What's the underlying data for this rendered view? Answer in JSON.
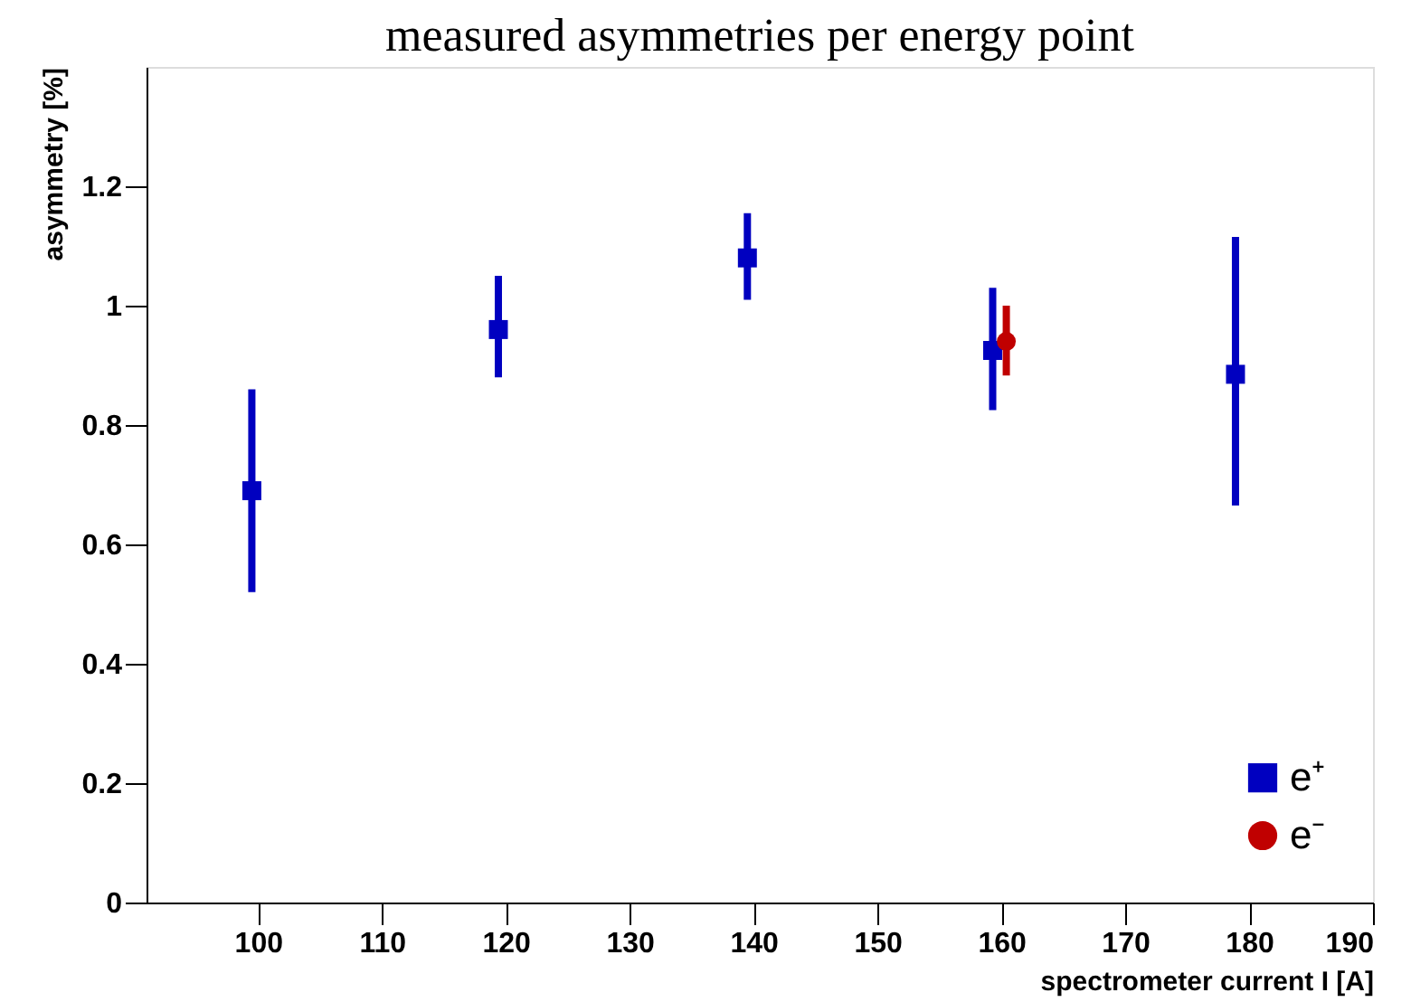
{
  "chart_data": {
    "type": "scatter",
    "title": "measured asymmetries per energy point",
    "xlabel": "spectrometer current I [A]",
    "ylabel": "asymmetry [%]",
    "xlim": [
      91,
      190
    ],
    "xticks": [
      100,
      110,
      120,
      130,
      140,
      150,
      160,
      170,
      180,
      190
    ],
    "ylim": [
      0,
      1.4
    ],
    "yticks": [
      0,
      0.2,
      0.4,
      0.6,
      0.8,
      1,
      1.2
    ],
    "grid": false,
    "legend": "bottom right",
    "series": [
      {
        "name": "e⁺",
        "color": "#0000c0",
        "marker": "square",
        "x": [
          99.5,
          119.4,
          139.5,
          159.3,
          178.9
        ],
        "values": [
          0.69,
          0.96,
          1.08,
          0.925,
          0.885
        ],
        "errors": [
          [
            0.52,
            0.86
          ],
          [
            0.88,
            1.05
          ],
          [
            1.01,
            1.155
          ],
          [
            0.825,
            1.03
          ],
          [
            0.665,
            1.115
          ]
        ]
      },
      {
        "name": "e⁻",
        "color": "#c00000",
        "marker": "circle",
        "x": [
          160.4
        ],
        "values": [
          0.94
        ],
        "errors": [
          [
            0.883,
            1.0
          ]
        ]
      }
    ]
  }
}
